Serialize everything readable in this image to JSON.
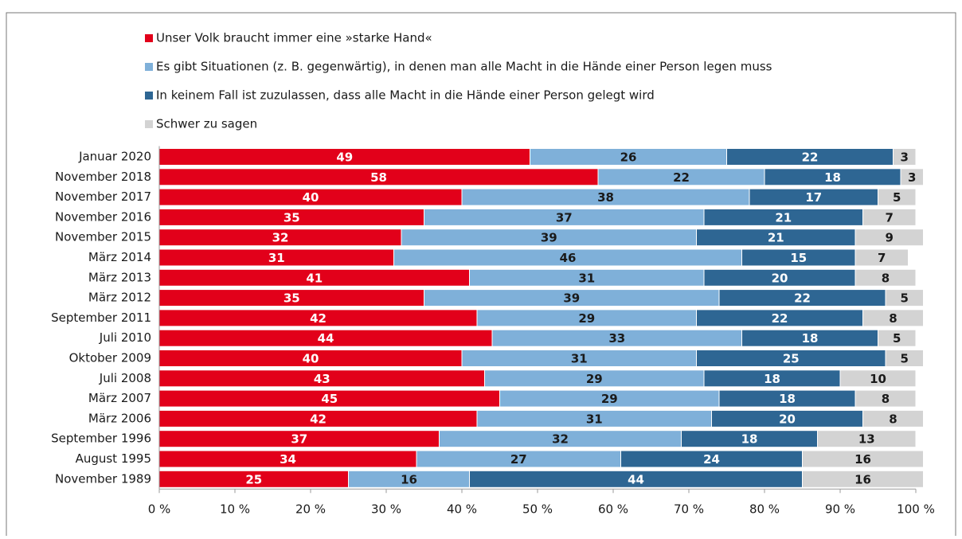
{
  "chart_data": {
    "type": "stacked-barh",
    "categories": [
      "Januar 2020",
      "November 2018",
      "November 2017",
      "November 2016",
      "November 2015",
      "März 2014",
      "März 2013",
      "März 2012",
      "September 2011",
      "Juli 2010",
      "Oktober 2009",
      "Juli 2008",
      "März 2007",
      "März 2006",
      "September 1996",
      "August 1995",
      "November 1989"
    ],
    "series": [
      {
        "name": "Unser Volk braucht immer eine »starke Hand«",
        "color": "#e2001a",
        "label_color": "#ffffff",
        "values": [
          49,
          58,
          40,
          35,
          32,
          31,
          41,
          35,
          42,
          44,
          40,
          43,
          45,
          42,
          37,
          34,
          25
        ]
      },
      {
        "name": "Es gibt Situationen (z. B. gegenwärtig), in denen man alle Macht in die Hände einer Person legen muss",
        "color": "#7fb0d9",
        "label_color": "#1a1a1a",
        "values": [
          26,
          22,
          38,
          37,
          39,
          46,
          31,
          39,
          29,
          33,
          31,
          29,
          29,
          31,
          32,
          27,
          16
        ]
      },
      {
        "name": "In keinem Fall ist zuzulassen, dass alle Macht in die Hände einer Person gelegt wird",
        "color": "#2e6693",
        "label_color": "#ffffff",
        "values": [
          22,
          18,
          17,
          21,
          21,
          15,
          20,
          22,
          22,
          18,
          25,
          18,
          18,
          20,
          18,
          24,
          44
        ]
      },
      {
        "name": "Schwer zu sagen",
        "color": "#d3d3d3",
        "label_color": "#1a1a1a",
        "values": [
          3,
          3,
          5,
          7,
          9,
          7,
          8,
          5,
          8,
          5,
          5,
          10,
          8,
          8,
          13,
          16,
          16
        ]
      }
    ],
    "xlim": [
      0,
      100
    ],
    "xticks": [
      {
        "value": 0,
        "label": "0 %"
      },
      {
        "value": 10,
        "label": "10 %"
      },
      {
        "value": 20,
        "label": "20 %"
      },
      {
        "value": 30,
        "label": "30 %"
      },
      {
        "value": 40,
        "label": "40 %"
      },
      {
        "value": 50,
        "label": "50 %"
      },
      {
        "value": 60,
        "label": "60 %"
      },
      {
        "value": 70,
        "label": "70 %"
      },
      {
        "value": 80,
        "label": "80 %"
      },
      {
        "value": 90,
        "label": "90 %"
      },
      {
        "value": 100,
        "label": "100 %"
      }
    ],
    "legend": "top",
    "grid": false
  }
}
